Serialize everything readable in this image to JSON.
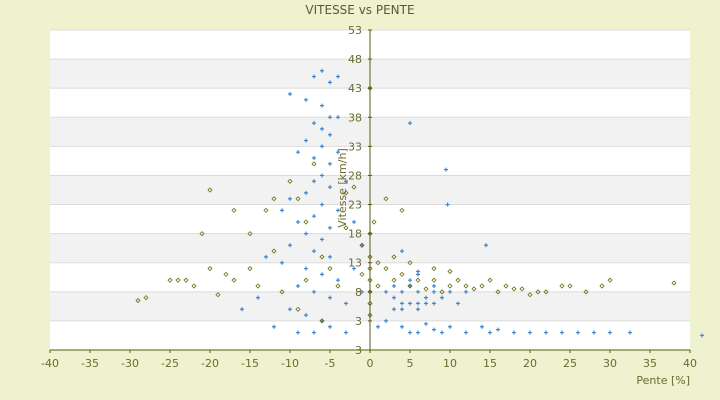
{
  "chart_data": {
    "type": "scatter",
    "title": "VITESSE vs PENTE",
    "xlabel": "Pente [%]",
    "ylabel": "Vitesse [km/h]",
    "xlim": [
      -40,
      40
    ],
    "ylim": [
      -2,
      53
    ],
    "x_ticks": [
      "-40",
      "-35",
      "-30",
      "-25",
      "-20",
      "-15",
      "-10",
      "-5",
      "0",
      "5",
      "10",
      "15",
      "20",
      "25",
      "30",
      "35",
      "40"
    ],
    "y_ticks": [
      "53",
      "48",
      "43",
      "38",
      "33",
      "28",
      "23",
      "18",
      "13",
      "8",
      "3",
      "3"
    ],
    "grid": "horizontal alternating bands",
    "colors": {
      "background": "#eef2cf",
      "band": "#f2f2f2",
      "axis": "#5a5a10",
      "series_blue": "#3a8ad8",
      "series_olive": "#6b6b10"
    },
    "series": [
      {
        "marker": "plus",
        "color": "#3a8ad8",
        "points": [
          [
            -6,
            46
          ],
          [
            -7,
            45
          ],
          [
            -5,
            44
          ],
          [
            -4,
            45
          ],
          [
            -8,
            41
          ],
          [
            -6,
            40
          ],
          [
            -5,
            38
          ],
          [
            -7,
            37
          ],
          [
            -6,
            36
          ],
          [
            -4,
            38
          ],
          [
            -5,
            35
          ],
          [
            -8,
            34
          ],
          [
            -6,
            33
          ],
          [
            -7,
            31
          ],
          [
            -5,
            30
          ],
          [
            -9,
            32
          ],
          [
            -6,
            28
          ],
          [
            -7,
            27
          ],
          [
            -5,
            26
          ],
          [
            -8,
            25
          ],
          [
            -10,
            24
          ],
          [
            -6,
            23
          ],
          [
            -4,
            22
          ],
          [
            -7,
            21
          ],
          [
            -9,
            20
          ],
          [
            -5,
            19
          ],
          [
            -8,
            18
          ],
          [
            -6,
            17
          ],
          [
            -10,
            16
          ],
          [
            -7,
            15
          ],
          [
            -5,
            14
          ],
          [
            -11,
            13
          ],
          [
            -8,
            12
          ],
          [
            -6,
            11
          ],
          [
            -4,
            10
          ],
          [
            -9,
            9
          ],
          [
            -7,
            8
          ],
          [
            -5,
            7
          ],
          [
            -3,
            6
          ],
          [
            -10,
            5
          ],
          [
            -8,
            4
          ],
          [
            -6,
            3
          ],
          [
            -12,
            2
          ],
          [
            -9,
            1
          ],
          [
            -7,
            1
          ],
          [
            -5,
            2
          ],
          [
            -3,
            1
          ],
          [
            -10,
            42
          ],
          [
            -4,
            32
          ],
          [
            -3,
            27
          ],
          [
            -2,
            20
          ],
          [
            -1,
            16
          ],
          [
            -2,
            12
          ],
          [
            -1,
            8
          ],
          [
            -14,
            7
          ],
          [
            -16,
            5
          ],
          [
            -13,
            14
          ],
          [
            -11,
            22
          ],
          [
            2,
            8
          ],
          [
            3,
            7
          ],
          [
            4,
            8
          ],
          [
            5,
            9
          ],
          [
            6,
            8
          ],
          [
            7,
            7
          ],
          [
            8,
            8
          ],
          [
            4,
            6
          ],
          [
            5,
            6
          ],
          [
            6,
            6
          ],
          [
            7,
            6
          ],
          [
            3,
            9
          ],
          [
            5,
            10
          ],
          [
            6,
            11
          ],
          [
            8,
            9
          ],
          [
            9,
            7
          ],
          [
            10,
            8
          ],
          [
            4,
            5
          ],
          [
            6,
            5
          ],
          [
            8,
            6
          ],
          [
            11,
            6
          ],
          [
            12,
            8
          ],
          [
            3,
            5
          ],
          [
            2,
            3
          ],
          [
            1,
            2
          ],
          [
            6,
            11.5
          ],
          [
            4,
            2
          ],
          [
            6,
            1
          ],
          [
            8,
            1.5
          ],
          [
            10,
            2
          ],
          [
            12,
            1
          ],
          [
            14,
            2
          ],
          [
            16,
            1.5
          ],
          [
            18,
            1
          ],
          [
            20,
            1
          ],
          [
            22,
            1
          ],
          [
            24,
            1
          ],
          [
            26,
            1
          ],
          [
            28,
            1
          ],
          [
            30,
            1
          ],
          [
            32.5,
            1
          ],
          [
            41.5,
            0.5
          ],
          [
            5,
            1
          ],
          [
            7,
            2.5
          ],
          [
            9,
            1
          ],
          [
            15,
            1
          ],
          [
            5,
            37
          ],
          [
            9.5,
            29
          ],
          [
            9.7,
            23
          ],
          [
            14.5,
            16
          ],
          [
            4,
            15
          ]
        ]
      },
      {
        "marker": "diamond",
        "color": "#6b6b10",
        "points": [
          [
            -29,
            6.5
          ],
          [
            -28,
            7
          ],
          [
            -25,
            10
          ],
          [
            -24,
            10
          ],
          [
            -23,
            10
          ],
          [
            -22,
            9
          ],
          [
            -21,
            18
          ],
          [
            -20,
            25.5
          ],
          [
            -20,
            12
          ],
          [
            -19,
            7.5
          ],
          [
            -18,
            11
          ],
          [
            -17,
            10
          ],
          [
            -15,
            12
          ],
          [
            -14,
            9
          ],
          [
            -13,
            22
          ],
          [
            -12,
            15
          ],
          [
            -11,
            8
          ],
          [
            -10,
            27
          ],
          [
            -9,
            24
          ],
          [
            -8,
            20
          ],
          [
            -8,
            10
          ],
          [
            -7,
            30
          ],
          [
            -6,
            14
          ],
          [
            -5,
            12
          ],
          [
            -4,
            9
          ],
          [
            -3,
            25
          ],
          [
            -2,
            26
          ],
          [
            -1,
            16
          ],
          [
            -1,
            11
          ],
          [
            0,
            14
          ],
          [
            0,
            12
          ],
          [
            0,
            10
          ],
          [
            0,
            8
          ],
          [
            0,
            6
          ],
          [
            0,
            4
          ],
          [
            0,
            18
          ],
          [
            0,
            43
          ],
          [
            0.5,
            20
          ],
          [
            1,
            13
          ],
          [
            1,
            9
          ],
          [
            2,
            12
          ],
          [
            2,
            24
          ],
          [
            3,
            10
          ],
          [
            3,
            14
          ],
          [
            4,
            11
          ],
          [
            4,
            22
          ],
          [
            5,
            13
          ],
          [
            5,
            9
          ],
          [
            6,
            10
          ],
          [
            7,
            8.5
          ],
          [
            8,
            12
          ],
          [
            8,
            10
          ],
          [
            9,
            8
          ],
          [
            10,
            9
          ],
          [
            10,
            11.5
          ],
          [
            11,
            10
          ],
          [
            12,
            9
          ],
          [
            13,
            8.5
          ],
          [
            14,
            9
          ],
          [
            15,
            10
          ],
          [
            16,
            8
          ],
          [
            17,
            9
          ],
          [
            18,
            8.5
          ],
          [
            19,
            8.5
          ],
          [
            20,
            7.5
          ],
          [
            21,
            8
          ],
          [
            22,
            8
          ],
          [
            24,
            9
          ],
          [
            25,
            9
          ],
          [
            27,
            8
          ],
          [
            29,
            9
          ],
          [
            30,
            10
          ],
          [
            38,
            9.5
          ],
          [
            -15,
            18
          ],
          [
            -17,
            22
          ],
          [
            -12,
            24
          ],
          [
            -9,
            5
          ],
          [
            -6,
            3
          ],
          [
            -3,
            19
          ]
        ]
      }
    ]
  }
}
